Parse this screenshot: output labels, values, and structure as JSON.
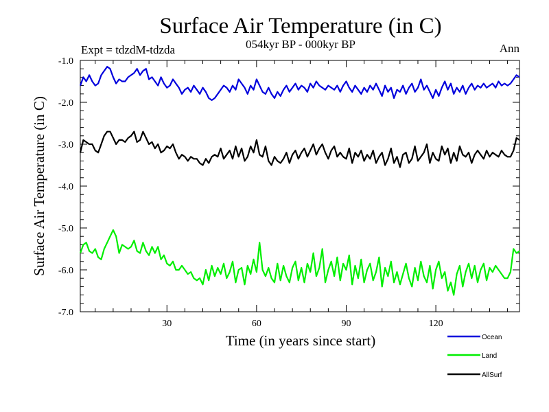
{
  "chart_data": {
    "type": "line",
    "title": "Surface Air Temperature (in C)",
    "subtitle": "054kyr BP - 000kyr BP",
    "left_label": "Expt = tdzdM-tdzda",
    "right_label": "Ann",
    "xlabel": "Time (in years since start)",
    "ylabel": "Surface Air Temperature (in C)",
    "xlim": [
      1,
      148
    ],
    "ylim": [
      -7.0,
      -1.0
    ],
    "x_ticks": [
      30,
      60,
      90,
      120
    ],
    "x_tick_labels": [
      "30",
      "60",
      "90",
      "120"
    ],
    "y_ticks": [
      -1.0,
      -2.0,
      -3.0,
      -4.0,
      -5.0,
      -6.0,
      -7.0
    ],
    "y_tick_labels": [
      "-1.0",
      "-2.0",
      "-3.0",
      "-4.0",
      "-5.0",
      "-6.0",
      "-7.0"
    ],
    "x": [
      1,
      2,
      3,
      4,
      5,
      6,
      7,
      8,
      9,
      10,
      11,
      12,
      13,
      14,
      15,
      16,
      17,
      18,
      19,
      20,
      21,
      22,
      23,
      24,
      25,
      26,
      27,
      28,
      29,
      30,
      31,
      32,
      33,
      34,
      35,
      36,
      37,
      38,
      39,
      40,
      41,
      42,
      43,
      44,
      45,
      46,
      47,
      48,
      49,
      50,
      51,
      52,
      53,
      54,
      55,
      56,
      57,
      58,
      59,
      60,
      61,
      62,
      63,
      64,
      65,
      66,
      67,
      68,
      69,
      70,
      71,
      72,
      73,
      74,
      75,
      76,
      77,
      78,
      79,
      80,
      81,
      82,
      83,
      84,
      85,
      86,
      87,
      88,
      89,
      90,
      91,
      92,
      93,
      94,
      95,
      96,
      97,
      98,
      99,
      100,
      101,
      102,
      103,
      104,
      105,
      106,
      107,
      108,
      109,
      110,
      111,
      112,
      113,
      114,
      115,
      116,
      117,
      118,
      119,
      120,
      121,
      122,
      123,
      124,
      125,
      126,
      127,
      128,
      129,
      130,
      131,
      132,
      133,
      134,
      135,
      136,
      137,
      138,
      139,
      140,
      141,
      142,
      143,
      144,
      145,
      146,
      147,
      148
    ],
    "series": [
      {
        "name": "Ocean",
        "color": "#0000dd",
        "values": [
          -1.6,
          -1.4,
          -1.5,
          -1.35,
          -1.5,
          -1.6,
          -1.55,
          -1.35,
          -1.25,
          -1.15,
          -1.2,
          -1.4,
          -1.55,
          -1.45,
          -1.5,
          -1.5,
          -1.4,
          -1.35,
          -1.3,
          -1.2,
          -1.35,
          -1.25,
          -1.2,
          -1.45,
          -1.4,
          -1.5,
          -1.6,
          -1.4,
          -1.55,
          -1.65,
          -1.6,
          -1.45,
          -1.55,
          -1.65,
          -1.8,
          -1.7,
          -1.65,
          -1.75,
          -1.6,
          -1.7,
          -1.8,
          -1.65,
          -1.75,
          -1.9,
          -1.95,
          -1.9,
          -1.8,
          -1.7,
          -1.6,
          -1.65,
          -1.75,
          -1.6,
          -1.7,
          -1.45,
          -1.55,
          -1.65,
          -1.8,
          -1.6,
          -1.7,
          -1.45,
          -1.6,
          -1.75,
          -1.8,
          -1.65,
          -1.8,
          -1.9,
          -1.75,
          -1.85,
          -1.7,
          -1.6,
          -1.75,
          -1.65,
          -1.55,
          -1.7,
          -1.6,
          -1.65,
          -1.75,
          -1.55,
          -1.65,
          -1.5,
          -1.6,
          -1.65,
          -1.7,
          -1.6,
          -1.65,
          -1.7,
          -1.6,
          -1.75,
          -1.6,
          -1.5,
          -1.65,
          -1.75,
          -1.6,
          -1.7,
          -1.8,
          -1.65,
          -1.75,
          -1.6,
          -1.7,
          -1.55,
          -1.7,
          -1.85,
          -1.6,
          -1.75,
          -1.65,
          -1.9,
          -1.7,
          -1.75,
          -1.6,
          -1.8,
          -1.65,
          -1.55,
          -1.75,
          -1.65,
          -1.45,
          -1.7,
          -1.6,
          -1.75,
          -1.9,
          -1.7,
          -1.85,
          -1.65,
          -1.5,
          -1.7,
          -1.55,
          -1.8,
          -1.65,
          -1.75,
          -1.6,
          -1.8,
          -1.65,
          -1.55,
          -1.7,
          -1.6,
          -1.65,
          -1.55,
          -1.65,
          -1.6,
          -1.55,
          -1.65,
          -1.5,
          -1.6,
          -1.55,
          -1.6,
          -1.55,
          -1.45,
          -1.35,
          -1.4
        ]
      },
      {
        "name": "Land",
        "color": "#00ee00",
        "values": [
          -5.6,
          -5.4,
          -5.35,
          -5.55,
          -5.6,
          -5.5,
          -5.7,
          -5.75,
          -5.5,
          -5.35,
          -5.2,
          -5.05,
          -5.2,
          -5.6,
          -5.4,
          -5.45,
          -5.5,
          -5.45,
          -5.3,
          -5.55,
          -5.6,
          -5.35,
          -5.55,
          -5.65,
          -5.45,
          -5.6,
          -5.45,
          -5.75,
          -5.65,
          -5.85,
          -5.9,
          -5.8,
          -6.0,
          -6.0,
          -5.9,
          -6.0,
          -6.1,
          -6.05,
          -6.2,
          -6.25,
          -6.2,
          -6.35,
          -6.0,
          -6.25,
          -5.9,
          -6.15,
          -5.95,
          -6.1,
          -5.85,
          -6.2,
          -6.05,
          -5.8,
          -6.3,
          -6.0,
          -5.95,
          -6.35,
          -5.9,
          -6.1,
          -5.75,
          -6.05,
          -5.35,
          -6.0,
          -6.15,
          -5.95,
          -6.2,
          -6.3,
          -5.85,
          -6.25,
          -5.9,
          -6.15,
          -6.3,
          -5.95,
          -5.8,
          -6.25,
          -5.95,
          -6.3,
          -5.85,
          -6.05,
          -5.6,
          -6.15,
          -5.95,
          -5.5,
          -6.3,
          -6.0,
          -5.8,
          -6.15,
          -5.7,
          -6.25,
          -5.85,
          -6.0,
          -5.65,
          -6.35,
          -5.9,
          -6.2,
          -5.75,
          -6.3,
          -6.0,
          -5.85,
          -6.25,
          -6.05,
          -5.7,
          -6.4,
          -5.95,
          -6.15,
          -5.8,
          -6.3,
          -6.05,
          -6.35,
          -6.1,
          -5.85,
          -6.2,
          -6.4,
          -5.95,
          -6.25,
          -5.8,
          -6.15,
          -6.3,
          -5.9,
          -6.45,
          -6.0,
          -5.8,
          -6.2,
          -6.05,
          -6.5,
          -6.3,
          -6.6,
          -6.1,
          -5.9,
          -6.4,
          -6.05,
          -5.85,
          -6.2,
          -5.9,
          -6.3,
          -6.0,
          -5.85,
          -6.25,
          -5.95,
          -6.05,
          -5.9,
          -6.0,
          -6.1,
          -6.2,
          -6.2,
          -6.05,
          -5.5,
          -5.6,
          -5.55
        ]
      },
      {
        "name": "AllSurf",
        "color": "#000000",
        "values": [
          -3.2,
          -2.9,
          -2.95,
          -3.0,
          -3.0,
          -3.15,
          -3.2,
          -3.0,
          -2.8,
          -2.7,
          -2.7,
          -2.85,
          -3.0,
          -2.9,
          -2.9,
          -2.95,
          -2.85,
          -2.8,
          -2.7,
          -2.95,
          -2.9,
          -2.7,
          -2.85,
          -3.0,
          -2.95,
          -3.1,
          -3.0,
          -3.2,
          -3.15,
          -3.05,
          -3.1,
          -3.0,
          -3.2,
          -3.35,
          -3.25,
          -3.3,
          -3.4,
          -3.3,
          -3.35,
          -3.35,
          -3.45,
          -3.5,
          -3.35,
          -3.45,
          -3.3,
          -3.25,
          -3.3,
          -3.1,
          -3.35,
          -3.25,
          -3.15,
          -3.35,
          -3.05,
          -3.3,
          -3.1,
          -3.4,
          -3.3,
          -3.05,
          -3.2,
          -2.9,
          -3.25,
          -3.3,
          -3.05,
          -3.4,
          -3.5,
          -3.3,
          -3.4,
          -3.45,
          -3.35,
          -3.2,
          -3.45,
          -3.25,
          -3.15,
          -3.35,
          -3.2,
          -3.1,
          -3.3,
          -3.15,
          -3.0,
          -3.25,
          -3.1,
          -3.0,
          -3.2,
          -3.35,
          -3.15,
          -3.05,
          -3.3,
          -3.2,
          -3.3,
          -3.35,
          -3.1,
          -3.45,
          -3.2,
          -3.3,
          -3.15,
          -3.4,
          -3.25,
          -3.35,
          -3.15,
          -3.45,
          -3.3,
          -3.2,
          -3.5,
          -3.35,
          -3.1,
          -3.45,
          -3.3,
          -3.55,
          -3.25,
          -3.2,
          -3.45,
          -3.35,
          -3.05,
          -3.4,
          -3.3,
          -3.2,
          -3.0,
          -3.45,
          -3.2,
          -3.35,
          -3.4,
          -3.05,
          -3.25,
          -3.1,
          -3.45,
          -3.2,
          -3.4,
          -3.05,
          -3.25,
          -3.3,
          -3.2,
          -3.45,
          -3.25,
          -3.15,
          -3.25,
          -3.35,
          -3.15,
          -3.3,
          -3.2,
          -3.25,
          -3.3,
          -3.15,
          -3.25,
          -3.3,
          -3.3,
          -3.15,
          -2.85,
          -2.9
        ]
      }
    ]
  }
}
